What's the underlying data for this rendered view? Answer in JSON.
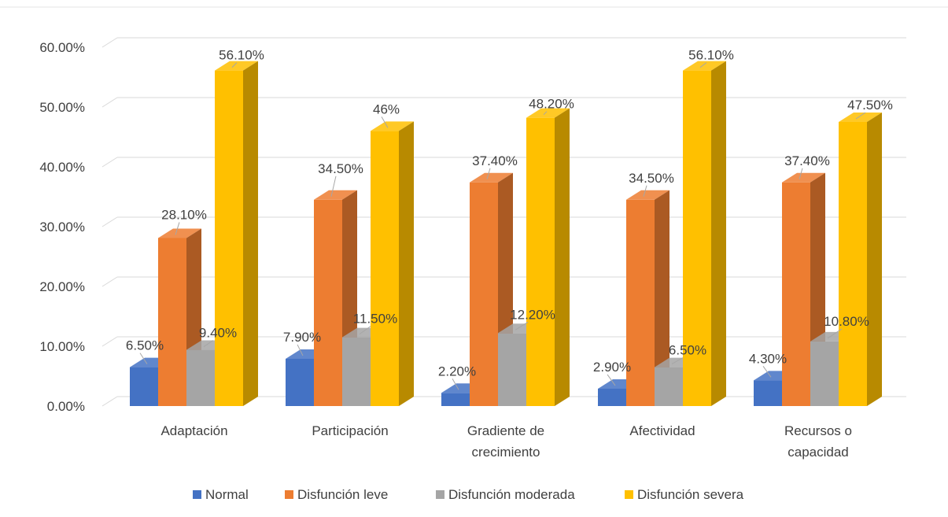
{
  "chart_data": {
    "type": "bar",
    "title": "",
    "xlabel": "",
    "ylabel": "",
    "ylim": [
      0,
      0.6
    ],
    "y_ticks": [
      "0.00%",
      "10.00%",
      "20.00%",
      "30.00%",
      "40.00%",
      "50.00%",
      "60.00%"
    ],
    "categories": [
      [
        "Adaptación"
      ],
      [
        "Participación"
      ],
      [
        "Gradiente de",
        "crecimiento"
      ],
      [
        "Afectividad"
      ],
      [
        "Recursos o",
        "capacidad"
      ]
    ],
    "series": [
      {
        "name": "Normal",
        "color": "#4472c4",
        "values": [
          0.065,
          0.079,
          0.022,
          0.029,
          0.043
        ],
        "labels": [
          "6.50%",
          "7.90%",
          "2.20%",
          "2.90%",
          "4.30%"
        ]
      },
      {
        "name": "Disfunción leve",
        "color": "#ed7d31",
        "values": [
          0.281,
          0.345,
          0.374,
          0.345,
          0.374
        ],
        "labels": [
          "28.10%",
          "34.50%",
          "37.40%",
          "34.50%",
          "37.40%"
        ]
      },
      {
        "name": "Disfunción moderada",
        "color": "#a5a5a5",
        "values": [
          0.094,
          0.115,
          0.122,
          0.065,
          0.108
        ],
        "labels": [
          "9.40%",
          "11.50%",
          "12.20%",
          "6.50%",
          "10.80%"
        ]
      },
      {
        "name": "Disfunción severa",
        "color": "#ffc000",
        "values": [
          0.561,
          0.46,
          0.482,
          0.561,
          0.475
        ],
        "labels": [
          "56.10%",
          "46%",
          "48.20%",
          "56.10%",
          "47.50%"
        ]
      }
    ],
    "legend_position": "bottom",
    "grid": true,
    "style": "3d-clustered-column"
  }
}
